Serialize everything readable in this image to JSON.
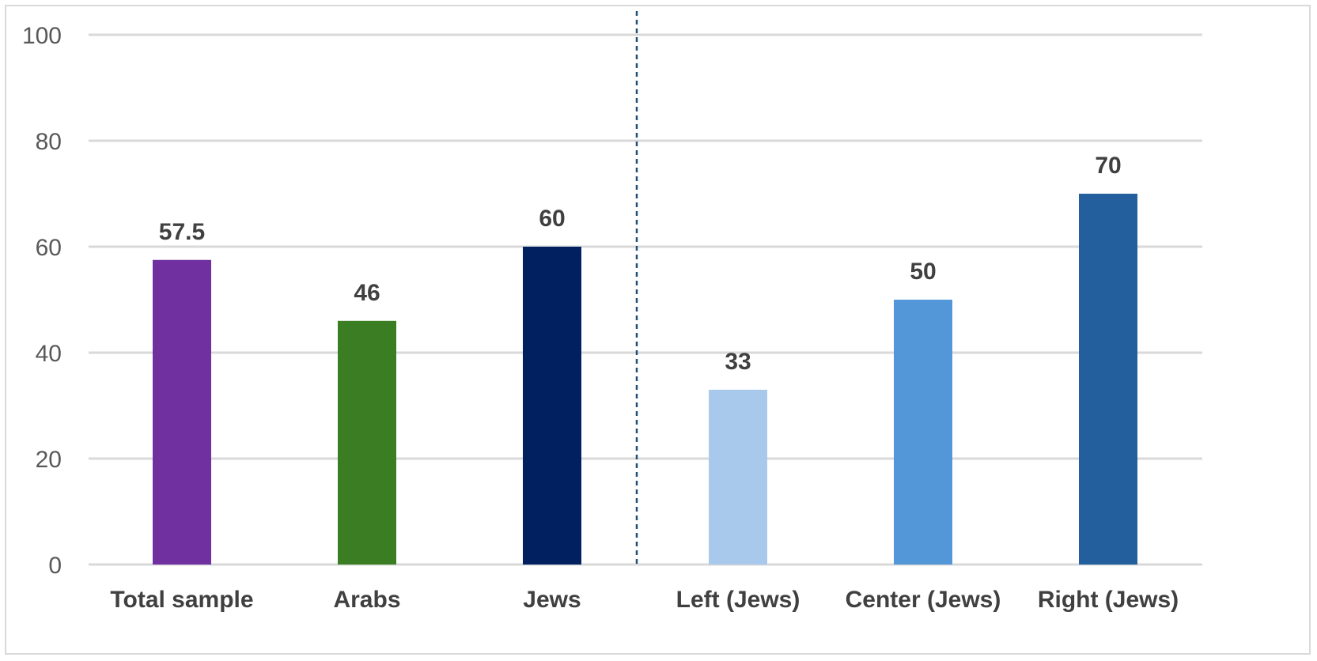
{
  "chart_data": {
    "type": "bar",
    "title": "",
    "xlabel": "",
    "ylabel": "",
    "categories": [
      "Total sample",
      "Arabs",
      "Jews",
      "Left (Jews)",
      "Center (Jews)",
      "Right (Jews)"
    ],
    "values": [
      57.5,
      46,
      60,
      33,
      50,
      70
    ],
    "data_labels": [
      "57.5",
      "46",
      "60",
      "33",
      "50",
      "70"
    ],
    "bar_colors": [
      "#7030a0",
      "#3a7d22",
      "#002060",
      "#a9c9ec",
      "#5497d8",
      "#225f9c"
    ],
    "ylim": [
      0,
      100
    ],
    "yticks": [
      0,
      20,
      40,
      60,
      80,
      100
    ],
    "ytick_labels": [
      "0",
      "20",
      "40",
      "60",
      "80",
      "100"
    ],
    "grid": true,
    "legend": "none",
    "separator": {
      "style": "dashed",
      "between_categories": [
        "Jews",
        "Left (Jews)"
      ],
      "color": "#1f4e79"
    }
  }
}
